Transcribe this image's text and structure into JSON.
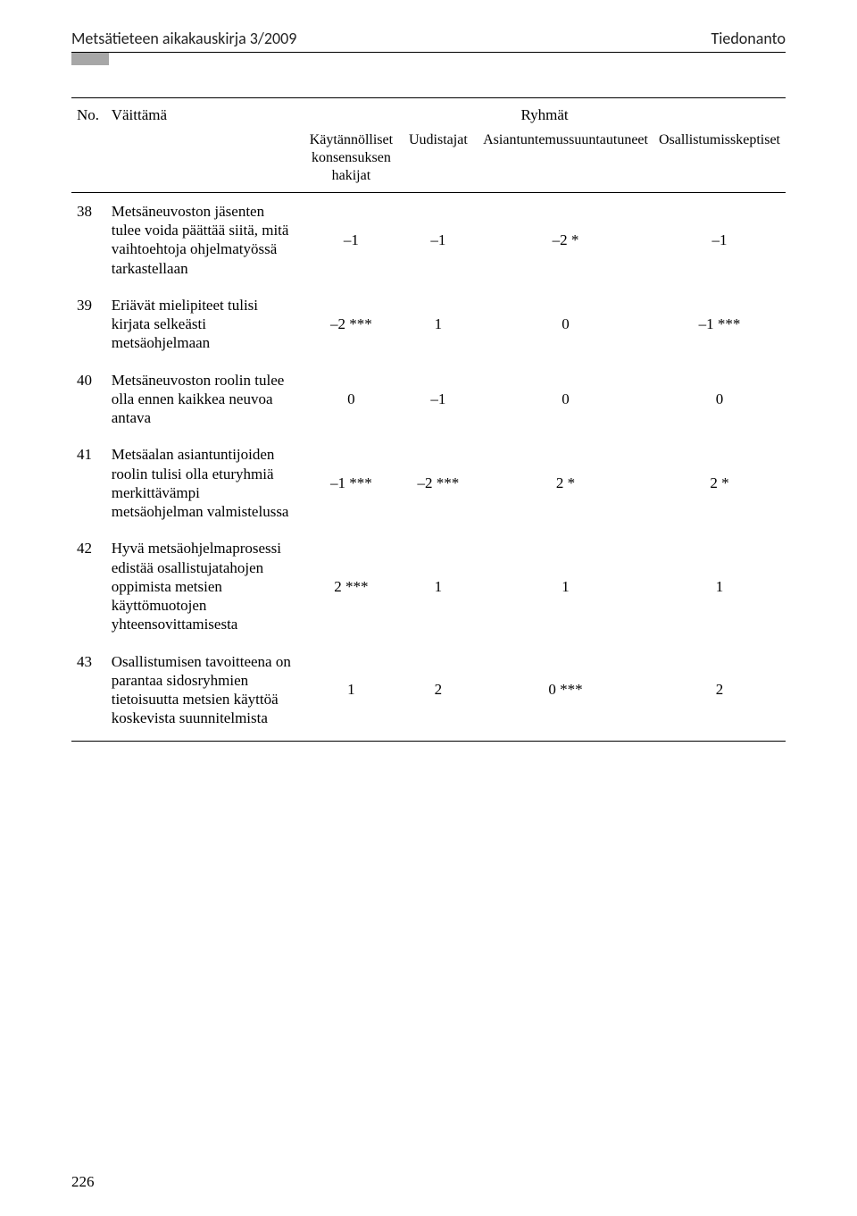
{
  "header": {
    "left": "Metsätieteen aikakauskirja 3/2009",
    "right": "Tiedonanto"
  },
  "table": {
    "col_no": "No.",
    "col_statement": "Väittämä",
    "col_groups": "Ryhmät",
    "subheaders": [
      "Käytännölliset konsensuksen hakijat",
      "Uudistajat",
      "Asiantuntemussuuntautuneet",
      "Osallistumisskeptiset"
    ],
    "rows": [
      {
        "no": "38",
        "stmt": "Metsäneuvoston jäsenten tulee voida päättää siitä, mitä vaihtoehtoja ohjelmatyössä tarkastellaan",
        "v": [
          "–1",
          "–1",
          "–2 *",
          "–1"
        ]
      },
      {
        "no": "39",
        "stmt": "Eriävät mielipiteet tulisi kirjata selkeästi metsäohjelmaan",
        "v": [
          "–2 ***",
          "1",
          "0",
          "–1 ***"
        ]
      },
      {
        "no": "40",
        "stmt": "Metsäneuvoston roolin tulee olla ennen kaikkea neuvoa antava",
        "v": [
          "0",
          "–1",
          "0",
          "0"
        ]
      },
      {
        "no": "41",
        "stmt": "Metsäalan asiantuntijoiden roolin tulisi olla eturyhmiä merkittävämpi metsäohjelman valmistelussa",
        "v": [
          "–1 ***",
          "–2 ***",
          "2 *",
          "2 *"
        ]
      },
      {
        "no": "42",
        "stmt": "Hyvä metsäohjelmaprosessi edistää osallistujatahojen oppimista metsien käyttömuotojen yhteensovittamisesta",
        "v": [
          "2 ***",
          "1",
          "1",
          "1"
        ]
      },
      {
        "no": "43",
        "stmt": "Osallistumisen tavoitteena on parantaa sidosryhmien tietoisuutta metsien käyttöä koskevista suunnitelmista",
        "v": [
          "1",
          "2",
          "0 ***",
          "2"
        ]
      }
    ]
  },
  "page_number": "226"
}
